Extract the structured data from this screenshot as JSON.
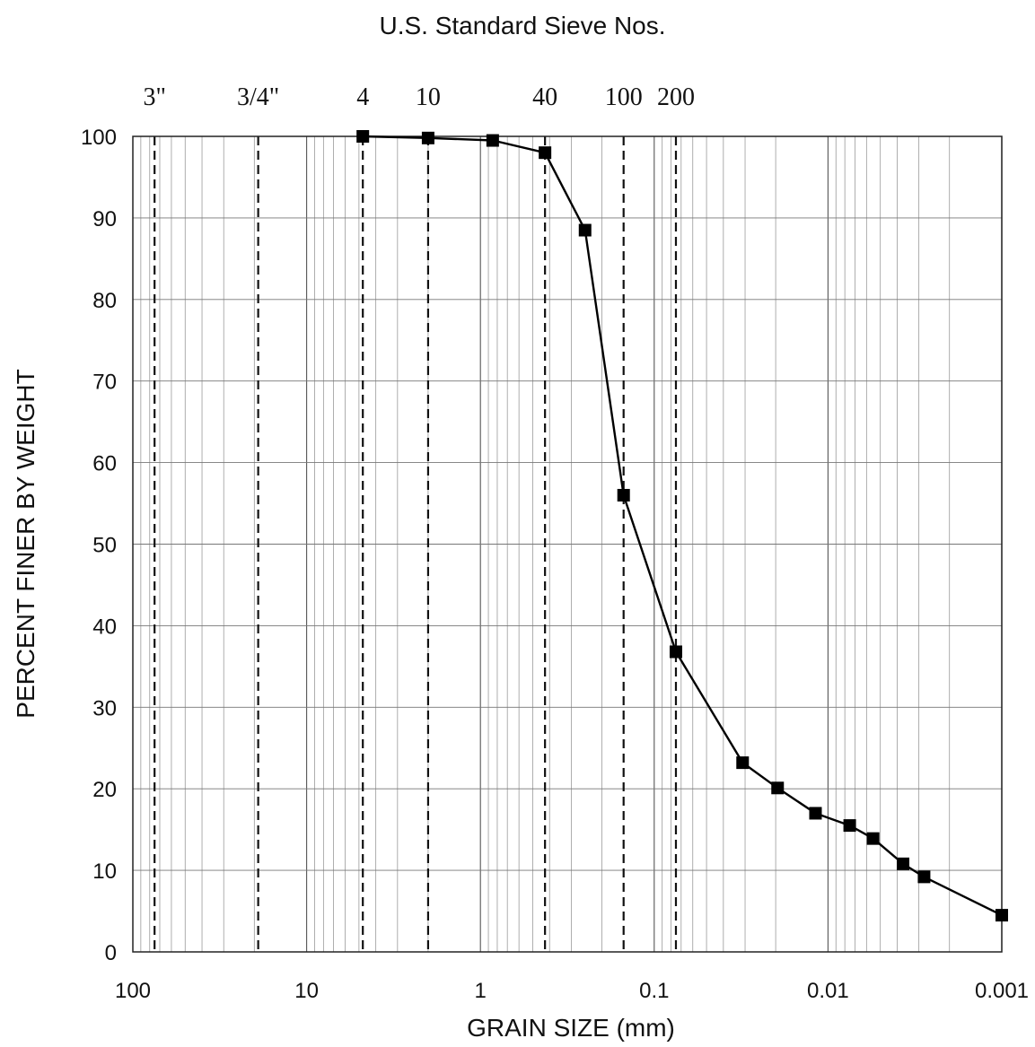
{
  "chart_data": {
    "type": "line",
    "title": "U.S. Standard Sieve Nos.",
    "xlabel": "GRAIN SIZE (mm)",
    "ylabel": "PERCENT FINER BY WEIGHT",
    "x_scale": "log",
    "x_reversed": true,
    "xlim": [
      100,
      0.001
    ],
    "ylim": [
      0,
      100
    ],
    "x_ticks": [
      {
        "value": 100,
        "label": "100"
      },
      {
        "value": 10,
        "label": "10"
      },
      {
        "value": 1,
        "label": "1"
      },
      {
        "value": 0.1,
        "label": "0.1"
      },
      {
        "value": 0.01,
        "label": "0.01"
      },
      {
        "value": 0.001,
        "label": "0.001"
      }
    ],
    "y_ticks": [
      0,
      10,
      20,
      30,
      40,
      50,
      60,
      70,
      80,
      90,
      100
    ],
    "sieves": [
      {
        "label": "3\"",
        "size": 75
      },
      {
        "label": "3/4\"",
        "size": 19
      },
      {
        "label": "4",
        "size": 4.75
      },
      {
        "label": "10",
        "size": 2.0
      },
      {
        "label": "40",
        "size": 0.425
      },
      {
        "label": "100",
        "size": 0.15
      },
      {
        "label": "200",
        "size": 0.075
      }
    ],
    "grid": true,
    "series": [
      {
        "marker": "square",
        "x": [
          4.75,
          2.0,
          0.85,
          0.425,
          0.25,
          0.15,
          0.075,
          0.031,
          0.0195,
          0.0118,
          0.0075,
          0.0055,
          0.0037,
          0.0028,
          0.001
        ],
        "y": [
          100,
          99.8,
          99.5,
          98,
          88.5,
          56,
          36.8,
          23.2,
          20.1,
          17,
          15.5,
          13.9,
          10.8,
          9.2,
          4.5
        ]
      }
    ]
  }
}
